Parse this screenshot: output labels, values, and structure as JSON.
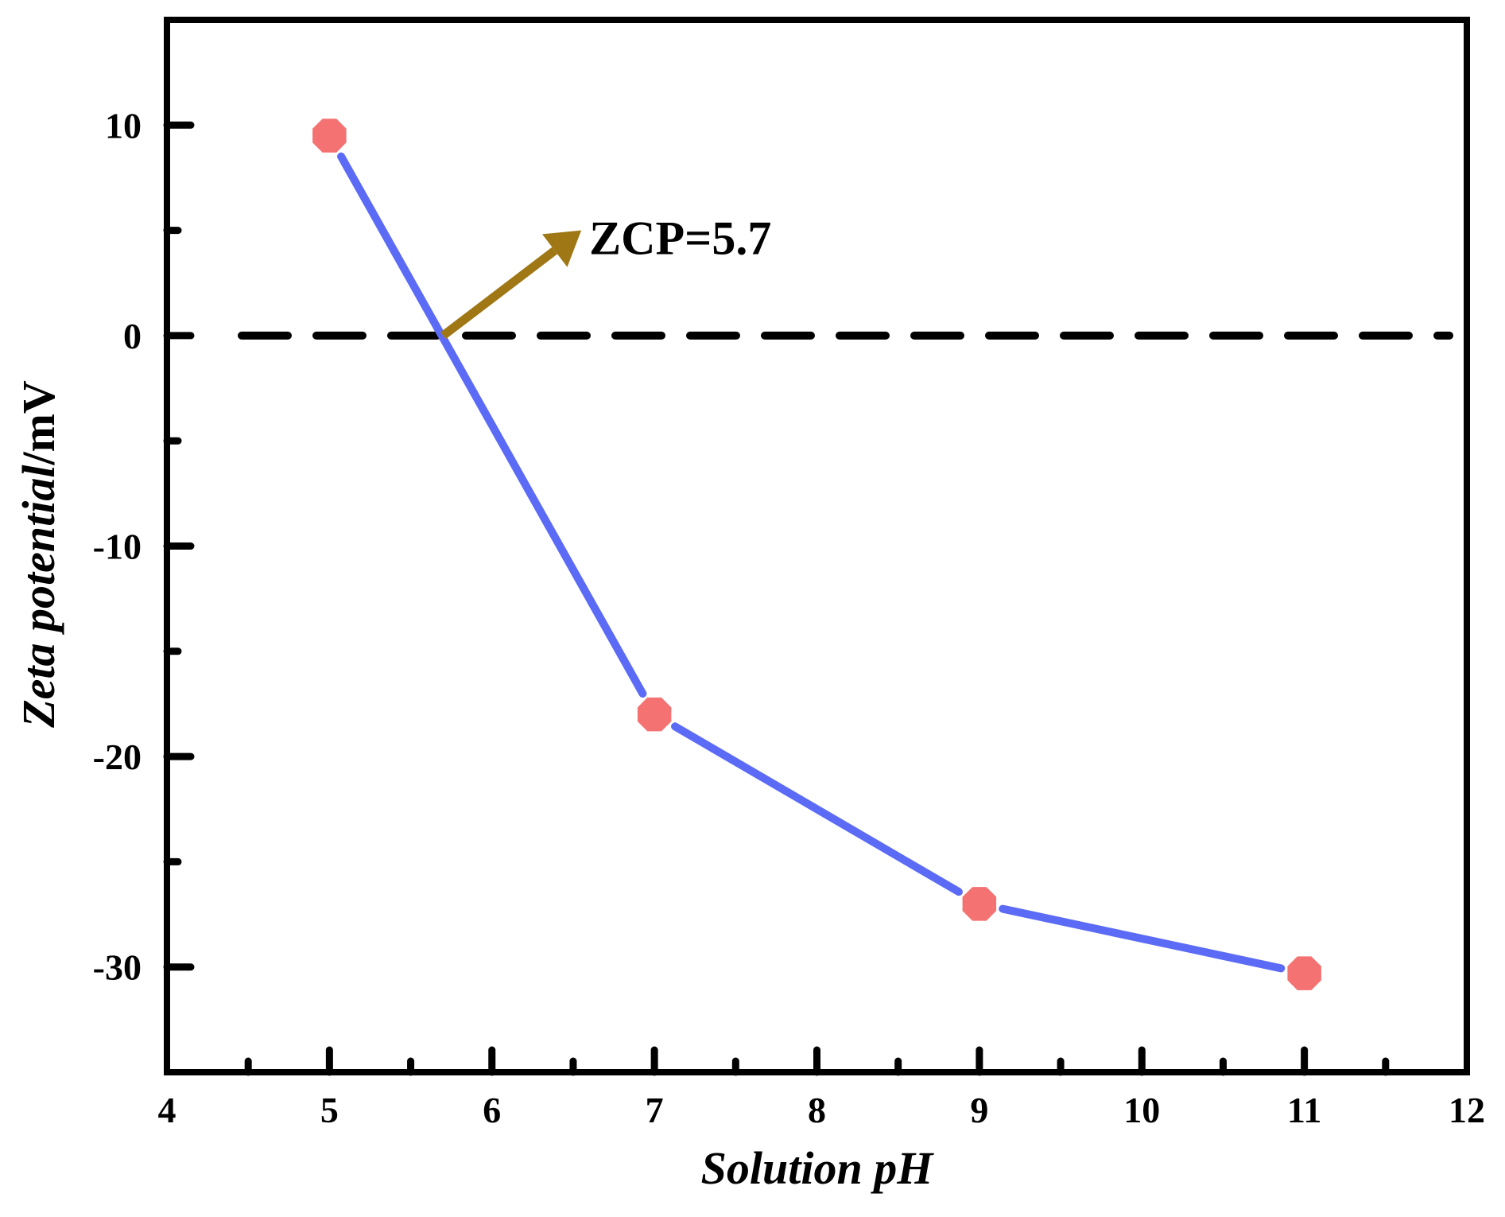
{
  "chart_data": {
    "type": "line",
    "xlabel": "Solution pH",
    "ylabel_italic": "Zeta potential",
    "ylabel_unit": "/mV",
    "xlim": [
      4,
      12
    ],
    "ylim": [
      -35,
      15
    ],
    "xticks": [
      4,
      5,
      6,
      7,
      8,
      9,
      10,
      11,
      12
    ],
    "yticks": [
      10,
      0,
      -10,
      -20,
      -30
    ],
    "grid": false,
    "series": [
      {
        "x": [
          5,
          7,
          9,
          11
        ],
        "y": [
          9.5,
          -18,
          -27,
          -30.3
        ],
        "line_color": "#5B6BF5",
        "marker_color": "#F47272",
        "marker": "octagon"
      }
    ],
    "reference_line": {
      "y": 0,
      "style": "dashed",
      "color": "#000000"
    },
    "annotation": {
      "text": "ZCP=5.7",
      "arrow_from": [
        5.7,
        0
      ],
      "arrow_to": [
        6.55,
        5
      ],
      "arrow_color": "#A07715"
    }
  }
}
